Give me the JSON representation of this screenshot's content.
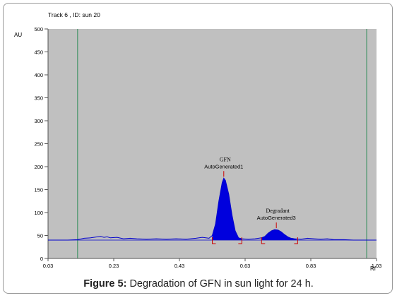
{
  "chart_data": {
    "type": "line",
    "title": "Track  6 , ID: sun 20",
    "ylabel": "AU",
    "xlabel": "Rf",
    "xlim": [
      0.03,
      1.03
    ],
    "ylim": [
      0,
      500
    ],
    "x_ticks": [
      0.03,
      0.23,
      0.43,
      0.63,
      0.83,
      1.03
    ],
    "x_tick_labels": [
      "0.03",
      "0.23",
      "0.43",
      "0.63",
      "0.83",
      "1.03"
    ],
    "y_ticks": [
      0,
      50,
      100,
      150,
      200,
      250,
      300,
      350,
      400,
      450,
      500
    ],
    "y_tick_labels": [
      "0",
      "50",
      "100",
      "150",
      "200",
      "250",
      "300",
      "350",
      "400",
      "450",
      "500"
    ],
    "grid": false,
    "background_color": "#c0c0c0",
    "trace_color": "#0000cc",
    "fill_color": "#0000dd",
    "marker_color": "#cc0000",
    "vertical_guides": [
      0.12,
      1.0
    ],
    "baseline": 40,
    "series": [
      {
        "values": [
          [
            0.03,
            40
          ],
          [
            0.06,
            40
          ],
          [
            0.09,
            40
          ],
          [
            0.12,
            41
          ],
          [
            0.14,
            44
          ],
          [
            0.16,
            45
          ],
          [
            0.18,
            47
          ],
          [
            0.19,
            48
          ],
          [
            0.2,
            46
          ],
          [
            0.21,
            47
          ],
          [
            0.22,
            45
          ],
          [
            0.24,
            46
          ],
          [
            0.26,
            43
          ],
          [
            0.28,
            44
          ],
          [
            0.3,
            43
          ],
          [
            0.33,
            42
          ],
          [
            0.36,
            43
          ],
          [
            0.39,
            42
          ],
          [
            0.42,
            43
          ],
          [
            0.45,
            42
          ],
          [
            0.48,
            44
          ],
          [
            0.5,
            46
          ],
          [
            0.52,
            44
          ],
          [
            0.53,
            50
          ],
          [
            0.54,
            75
          ],
          [
            0.55,
            125
          ],
          [
            0.56,
            165
          ],
          [
            0.565,
            175
          ],
          [
            0.57,
            170
          ],
          [
            0.58,
            140
          ],
          [
            0.59,
            95
          ],
          [
            0.6,
            60
          ],
          [
            0.61,
            45
          ],
          [
            0.62,
            43
          ],
          [
            0.64,
            42
          ],
          [
            0.66,
            43
          ],
          [
            0.68,
            45
          ],
          [
            0.69,
            48
          ],
          [
            0.7,
            55
          ],
          [
            0.71,
            60
          ],
          [
            0.72,
            63
          ],
          [
            0.73,
            62
          ],
          [
            0.74,
            58
          ],
          [
            0.75,
            52
          ],
          [
            0.76,
            47
          ],
          [
            0.77,
            44
          ],
          [
            0.78,
            43
          ],
          [
            0.8,
            42
          ],
          [
            0.82,
            44
          ],
          [
            0.84,
            43
          ],
          [
            0.86,
            42
          ],
          [
            0.88,
            43
          ],
          [
            0.9,
            41
          ],
          [
            0.93,
            41
          ],
          [
            0.96,
            40
          ],
          [
            1.0,
            40
          ],
          [
            1.03,
            40
          ]
        ]
      }
    ],
    "peaks": [
      {
        "label": "GFN",
        "sublabel": "AutoGenerated1",
        "rf": 0.565,
        "height": 175,
        "start": 0.53,
        "end": 0.62
      },
      {
        "label": "Degradant",
        "sublabel": "AutoGenerated3",
        "rf": 0.725,
        "height": 63,
        "start": 0.68,
        "end": 0.79
      }
    ]
  },
  "caption": {
    "prefix": "Figure 5:",
    "text": " Degradation of GFN in sun light for 24 h."
  }
}
